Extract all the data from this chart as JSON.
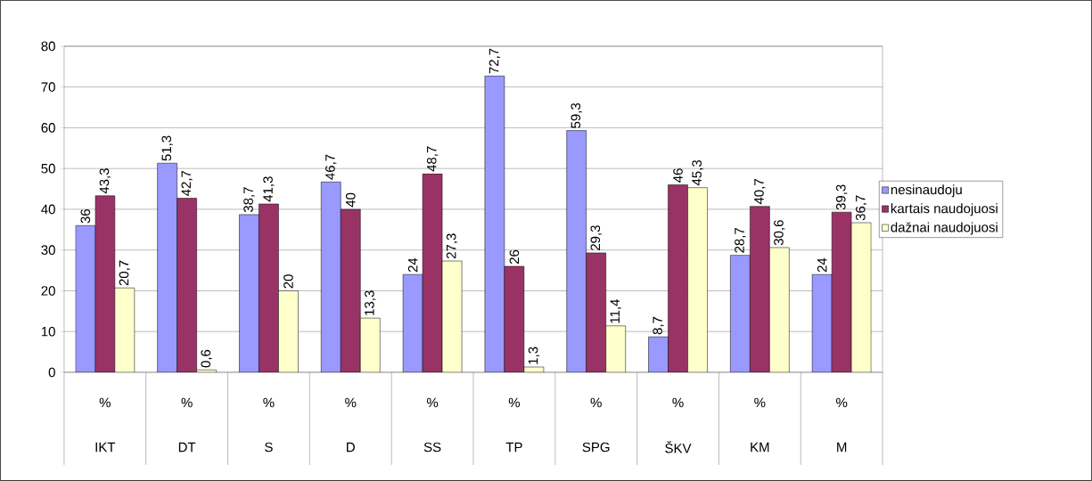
{
  "chart_data": {
    "type": "bar",
    "categories": [
      "IKT",
      "DT",
      "S",
      "D",
      "SS",
      "TP",
      "SPG",
      "ŠKV",
      "KM",
      "M"
    ],
    "annotations": [
      "%",
      "%",
      "%",
      "%",
      "%",
      "%",
      "%",
      "%",
      "%",
      "%"
    ],
    "series": [
      {
        "name": "nesinaudoju",
        "color": "#9999ff",
        "values": [
          36,
          51.3,
          38.7,
          46.7,
          24,
          72.7,
          59.3,
          8.7,
          28.7,
          24
        ],
        "value_labels": [
          "36",
          "51,3",
          "38,7",
          "46,7",
          "24",
          "72,7",
          "59,3",
          "8,7",
          "28,7",
          "24"
        ]
      },
      {
        "name": "kartais naudojuosi",
        "color": "#993366",
        "values": [
          43.3,
          42.7,
          41.3,
          40,
          48.7,
          26,
          29.3,
          46,
          40.7,
          39.3
        ],
        "value_labels": [
          "43,3",
          "42,7",
          "41,3",
          "40",
          "48,7",
          "26",
          "29,3",
          "46",
          "40,7",
          "39,3"
        ]
      },
      {
        "name": "dažnai naudojuosi",
        "color": "#ffffcc",
        "values": [
          20.7,
          0.6,
          20,
          13.3,
          27.3,
          1.3,
          11.4,
          45.3,
          30.6,
          36.7
        ],
        "value_labels": [
          "20,7",
          "0,6",
          "20",
          "13,3",
          "27,3",
          "1,3",
          "11,4",
          "45,3",
          "30,6",
          "36,7"
        ]
      }
    ],
    "ylim": [
      0,
      80
    ],
    "yticks": [
      0,
      10,
      20,
      30,
      40,
      50,
      60,
      70,
      80
    ],
    "grid": "y",
    "legend": "right"
  }
}
